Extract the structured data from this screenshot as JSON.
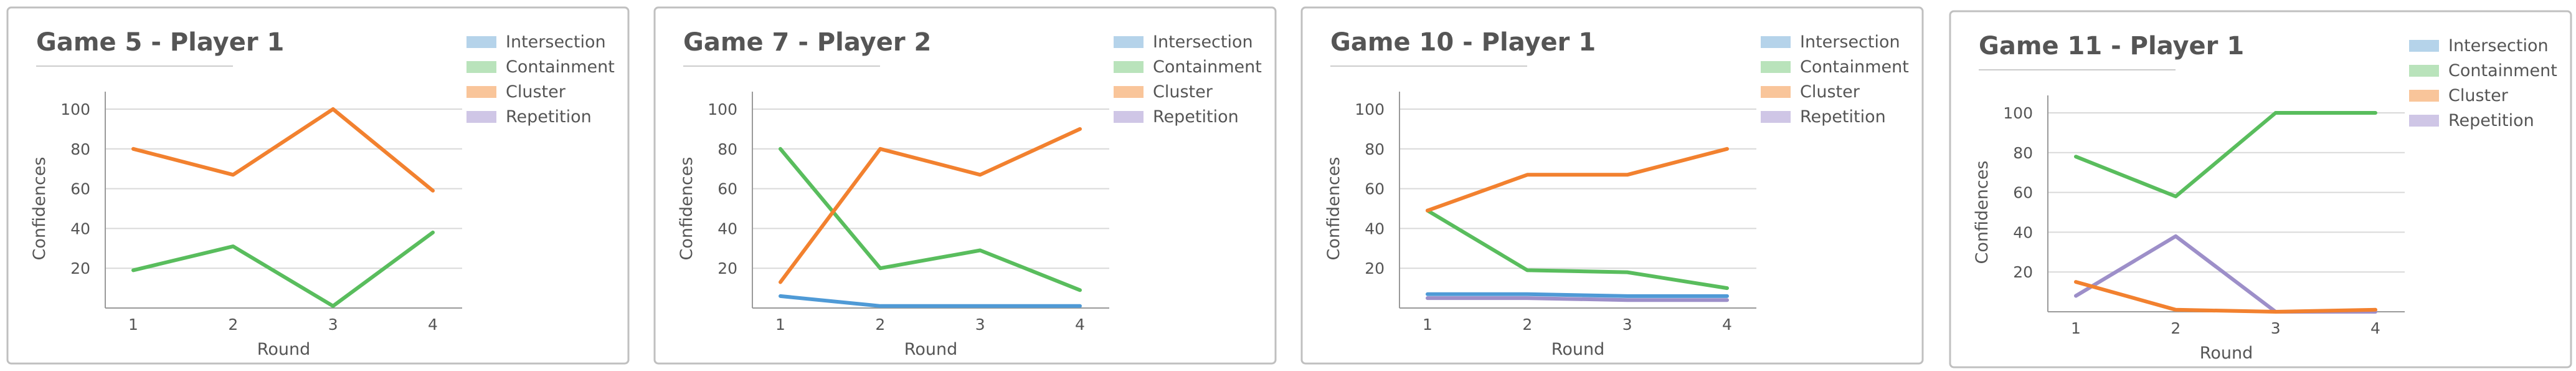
{
  "colors": {
    "Intersection": "#4f9ad6",
    "Containment": "#59bd5d",
    "Cluster": "#f2812f",
    "Repetition": "#9d8fc9",
    "Intersection_legend": "#b5d3ea",
    "Containment_legend": "#b9e3bb",
    "Cluster_legend": "#f9c59a",
    "Repetition_legend": "#cfc6e6",
    "panel_border": "#c0c0c0",
    "grid": "#d9d9d9",
    "text": "#555555"
  },
  "chart_data": [
    {
      "type": "line",
      "title": "Game 5 - Player 1",
      "xlabel": "Round",
      "ylabel": "Confidences",
      "categories": [
        "1",
        "2",
        "3",
        "4"
      ],
      "yticks": [
        "20",
        "40",
        "60",
        "80",
        "100"
      ],
      "ylim": [
        0,
        100
      ],
      "legend": [
        "Intersection",
        "Containment",
        "Cluster",
        "Repetition"
      ],
      "legend_position": "top-right",
      "grid": true,
      "series": [
        {
          "name": "Cluster",
          "values": [
            80,
            67,
            100,
            59
          ]
        },
        {
          "name": "Containment",
          "values": [
            19,
            31,
            1,
            38
          ]
        }
      ]
    },
    {
      "type": "line",
      "title": "Game 7 - Player 2",
      "xlabel": "Round",
      "ylabel": "Confidences",
      "categories": [
        "1",
        "2",
        "3",
        "4"
      ],
      "yticks": [
        "20",
        "40",
        "60",
        "80",
        "100"
      ],
      "ylim": [
        0,
        100
      ],
      "legend": [
        "Intersection",
        "Containment",
        "Cluster",
        "Repetition"
      ],
      "legend_position": "top-right",
      "grid": true,
      "series": [
        {
          "name": "Intersection",
          "values": [
            6,
            1,
            1,
            1
          ]
        },
        {
          "name": "Containment",
          "values": [
            80,
            20,
            29,
            9
          ]
        },
        {
          "name": "Cluster",
          "values": [
            13,
            80,
            67,
            90
          ]
        }
      ]
    },
    {
      "type": "line",
      "title": "Game 10 - Player 1",
      "xlabel": "Round",
      "ylabel": "Confidences",
      "categories": [
        "1",
        "2",
        "3",
        "4"
      ],
      "yticks": [
        "20",
        "40",
        "60",
        "80",
        "100"
      ],
      "ylim": [
        0,
        100
      ],
      "legend": [
        "Intersection",
        "Containment",
        "Cluster",
        "Repetition"
      ],
      "legend_position": "top-right",
      "grid": true,
      "series": [
        {
          "name": "Intersection",
          "values": [
            7,
            7,
            6,
            6
          ]
        },
        {
          "name": "Repetition",
          "values": [
            5,
            5,
            4,
            4
          ]
        },
        {
          "name": "Containment",
          "values": [
            49,
            19,
            18,
            10
          ]
        },
        {
          "name": "Cluster",
          "values": [
            49,
            67,
            67,
            80
          ]
        }
      ]
    },
    {
      "type": "line",
      "title": "Game 11 - Player 1",
      "xlabel": "Round",
      "ylabel": "Confidences",
      "categories": [
        "1",
        "2",
        "3",
        "4"
      ],
      "yticks": [
        "20",
        "40",
        "60",
        "80",
        "100"
      ],
      "ylim": [
        0,
        100
      ],
      "legend": [
        "Intersection",
        "Containment",
        "Cluster",
        "Repetition"
      ],
      "legend_position": "top-right",
      "grid": true,
      "series": [
        {
          "name": "Containment",
          "values": [
            78,
            58,
            100,
            100
          ]
        },
        {
          "name": "Repetition",
          "values": [
            8,
            38,
            0,
            0
          ]
        },
        {
          "name": "Cluster",
          "values": [
            15,
            1,
            0,
            1
          ]
        }
      ]
    }
  ]
}
